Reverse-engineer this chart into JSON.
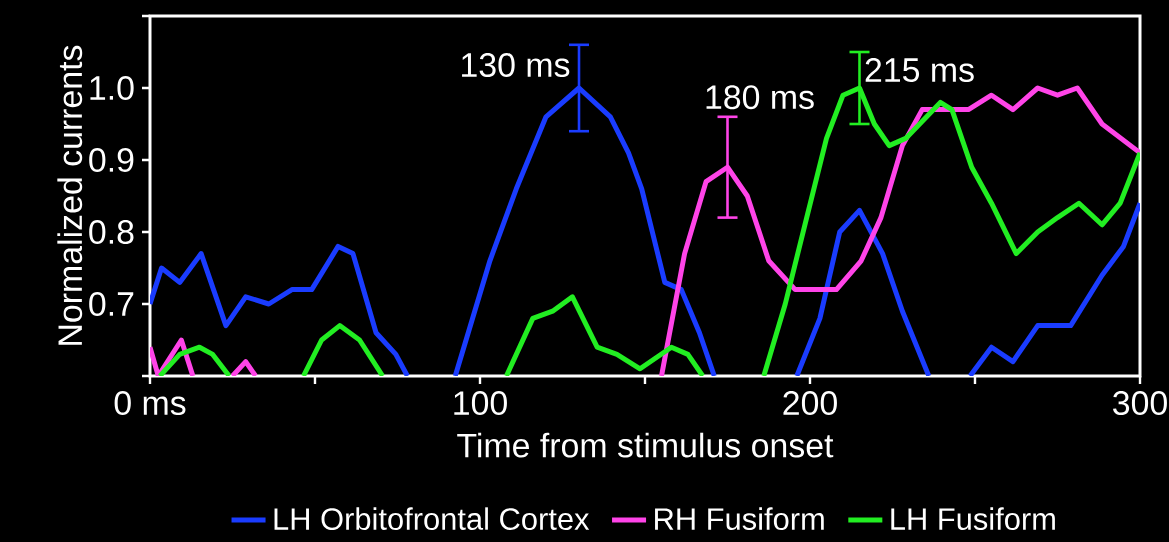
{
  "chart_data": {
    "type": "line",
    "xlabel": "Time from stimulus onset",
    "ylabel": "Normalized currents",
    "xlim": [
      0,
      300
    ],
    "ylim": [
      0.6,
      1.1
    ],
    "xticks": [
      {
        "value": 0,
        "label": "0 ms"
      },
      {
        "value": 50,
        "label": null
      },
      100,
      {
        "value": 150,
        "label": null
      },
      200,
      {
        "value": 250,
        "label": null
      },
      300
    ],
    "yticks": [
      {
        "value": 0.6,
        "label": null
      },
      0.7,
      0.8,
      0.9,
      {
        "value": 1,
        "label": "1.0"
      },
      {
        "value": 1.1,
        "label": null
      }
    ],
    "legend": "bottom",
    "marker": "none",
    "grid": false,
    "annotations": [
      {
        "text": "130 ms",
        "x": 130,
        "y": 1.0
      },
      {
        "text": "180 ms",
        "x": 175,
        "y": 0.89
      },
      {
        "text": "215 ms",
        "x": 215,
        "y": 1.0
      }
    ],
    "series": [
      {
        "name": "LH Orbitofrontal Cortex",
        "color": "#1a3cff",
        "x": [
          0,
          3.5,
          9,
          15.5,
          23,
          29,
          36,
          43,
          49,
          57,
          61.5,
          68.5,
          74.5,
          78,
          85,
          92.5,
          103,
          111,
          120,
          130,
          139.5,
          145,
          149,
          156,
          161,
          166.5,
          171,
          184,
          196,
          203,
          209,
          215,
          222,
          228,
          236,
          242,
          248.5,
          255,
          261.5,
          269,
          279,
          288.5,
          295,
          300
        ],
        "values": [
          0.7,
          0.75,
          0.73,
          0.77,
          0.67,
          0.71,
          0.7,
          0.72,
          0.72,
          0.78,
          0.77,
          0.66,
          0.63,
          0.6,
          null,
          0.6,
          0.76,
          0.86,
          0.96,
          1.0,
          0.96,
          0.91,
          0.86,
          0.73,
          0.72,
          0.66,
          0.6,
          null,
          0.6,
          0.68,
          0.8,
          0.83,
          0.77,
          0.69,
          0.6,
          null,
          0.6,
          0.64,
          0.62,
          0.67,
          0.67,
          0.74,
          0.78,
          0.84
        ],
        "errors": [
          null,
          null,
          null,
          null,
          null,
          null,
          null,
          null,
          null,
          null,
          null,
          null,
          null,
          null,
          null,
          null,
          null,
          null,
          null,
          0.06,
          null,
          null,
          null,
          null,
          null,
          null,
          null,
          null,
          null,
          null,
          null,
          null,
          null,
          null,
          null,
          null,
          null,
          null,
          null,
          null,
          null,
          null,
          null,
          null
        ]
      },
      {
        "name": "RH Fusiform",
        "color": "#ff44e8",
        "x": [
          0,
          2.5,
          9.5,
          13,
          19,
          25,
          29,
          32,
          100,
          155,
          162,
          168.5,
          175,
          181,
          187.5,
          195.5,
          202,
          208,
          215.5,
          221.5,
          228,
          234,
          240.5,
          248,
          255,
          261.5,
          269,
          275,
          281,
          288.5,
          300
        ],
        "values": [
          0.64,
          0.6,
          0.65,
          0.6,
          null,
          0.6,
          0.62,
          0.6,
          null,
          0.6,
          0.77,
          0.87,
          0.89,
          0.85,
          0.76,
          0.72,
          0.72,
          0.72,
          0.76,
          0.82,
          0.92,
          0.97,
          0.97,
          0.97,
          0.99,
          0.97,
          1.0,
          0.99,
          1.0,
          0.95,
          0.91
        ],
        "errors": [
          null,
          null,
          null,
          null,
          null,
          null,
          null,
          null,
          null,
          null,
          null,
          null,
          0.07,
          null,
          null,
          null,
          null,
          null,
          null,
          null,
          null,
          null,
          null,
          null,
          null,
          null,
          null,
          null,
          null,
          null,
          null
        ]
      },
      {
        "name": "LH Fusiform",
        "color": "#22ee22",
        "x": [
          3,
          9,
          15,
          19,
          24,
          35,
          46.5,
          52,
          57.5,
          63.5,
          70.5,
          90,
          108,
          116,
          122,
          128,
          135.5,
          141.5,
          148.5,
          158,
          163,
          167.5,
          177,
          186,
          192.5,
          199,
          205,
          210,
          215,
          219.5,
          224,
          229,
          239.5,
          243,
          249,
          255,
          262.5,
          269,
          275,
          281.5,
          288.5,
          294,
          300
        ],
        "values": [
          0.6,
          0.63,
          0.64,
          0.63,
          0.6,
          null,
          0.6,
          0.65,
          0.67,
          0.65,
          0.6,
          null,
          0.6,
          0.68,
          0.69,
          0.71,
          0.64,
          0.63,
          0.61,
          0.64,
          0.63,
          0.6,
          null,
          0.6,
          0.7,
          0.82,
          0.93,
          0.99,
          1.0,
          0.95,
          0.92,
          0.93,
          0.98,
          0.97,
          0.89,
          0.84,
          0.77,
          0.8,
          0.82,
          0.84,
          0.81,
          0.84,
          0.91
        ],
        "errors": [
          null,
          null,
          null,
          null,
          null,
          null,
          null,
          null,
          null,
          null,
          null,
          null,
          null,
          null,
          null,
          null,
          null,
          null,
          null,
          null,
          null,
          null,
          null,
          null,
          null,
          null,
          null,
          null,
          0.05,
          null,
          null,
          null,
          null,
          null,
          null,
          null,
          null,
          null,
          null,
          null,
          null,
          null,
          null
        ]
      }
    ]
  }
}
